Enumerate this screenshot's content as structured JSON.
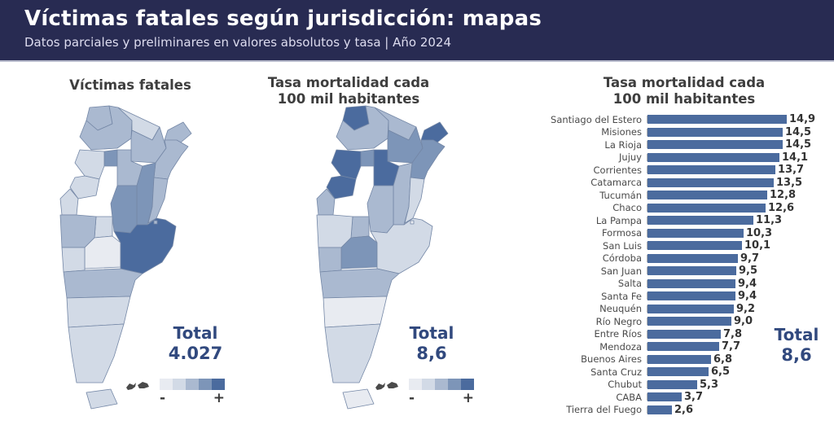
{
  "header": {
    "title": "Víctimas fatales según jurisdicción: mapas",
    "subtitle": "Datos parciales y preliminares en valores absolutos y tasa | Año 2024"
  },
  "colors": {
    "header_bg": "#282b52",
    "bar": "#4b6b9e",
    "total_text": "#31497e",
    "scale": [
      "#e8ebf1",
      "#d2dae6",
      "#aab9d0",
      "#7d95b8",
      "#4b6b9e"
    ]
  },
  "map_absolute": {
    "title": "Víctimas fatales",
    "total_label": "Total",
    "total_value": "4.027",
    "legend_minus": "-",
    "legend_plus": "+"
  },
  "map_rate": {
    "title_line1": "Tasa mortalidad cada",
    "title_line2": "100 mil habitantes",
    "total_label": "Total",
    "total_value": "8,6",
    "legend_minus": "-",
    "legend_plus": "+"
  },
  "bar_panel": {
    "title_line1": "Tasa mortalidad cada",
    "title_line2": "100 mil habitantes",
    "total_label": "Total",
    "total_value": "8,6"
  },
  "chart_data": {
    "type": "bar",
    "orientation": "horizontal",
    "title": "Tasa mortalidad cada 100 mil habitantes",
    "categories": [
      "Santiago del Estero",
      "Misiones",
      "La Rioja",
      "Jujuy",
      "Corrientes",
      "Catamarca",
      "Tucumán",
      "Chaco",
      "La Pampa",
      "Formosa",
      "San Luis",
      "Córdoba",
      "San Juan",
      "Salta",
      "Santa Fe",
      "Neuquén",
      "Río Negro",
      "Entre Ríos",
      "Mendoza",
      "Buenos Aires",
      "Santa Cruz",
      "Chubut",
      "CABA",
      "Tierra del Fuego"
    ],
    "values": [
      14.9,
      14.5,
      14.5,
      14.1,
      13.7,
      13.5,
      12.8,
      12.6,
      11.3,
      10.3,
      10.1,
      9.7,
      9.5,
      9.4,
      9.4,
      9.2,
      9.0,
      7.8,
      7.7,
      6.8,
      6.5,
      5.3,
      3.7,
      2.6
    ],
    "value_labels": [
      "14,9",
      "14,5",
      "14,5",
      "14,1",
      "13,7",
      "13,5",
      "12,8",
      "12,6",
      "11,3",
      "10,3",
      "10,1",
      "9,7",
      "9,5",
      "9,4",
      "9,4",
      "9,2",
      "9,0",
      "7,8",
      "7,7",
      "6,8",
      "6,5",
      "5,3",
      "3,7",
      "2,6"
    ],
    "xlim": [
      0,
      15.5
    ],
    "grid": false,
    "legend_position": "none",
    "total": "8,6"
  },
  "maps": {
    "provinces": [
      {
        "id": "jujuy",
        "name": "Jujuy",
        "level_absolute": 3,
        "level_rate": 5
      },
      {
        "id": "salta",
        "name": "Salta",
        "level_absolute": 3,
        "level_rate": 3
      },
      {
        "id": "formosa",
        "name": "Formosa",
        "level_absolute": 2,
        "level_rate": 3
      },
      {
        "id": "chaco",
        "name": "Chaco",
        "level_absolute": 3,
        "level_rate": 4
      },
      {
        "id": "misiones",
        "name": "Misiones",
        "level_absolute": 3,
        "level_rate": 5
      },
      {
        "id": "corrientes",
        "name": "Corrientes",
        "level_absolute": 3,
        "level_rate": 4
      },
      {
        "id": "tucuman",
        "name": "Tucumán",
        "level_absolute": 4,
        "level_rate": 4
      },
      {
        "id": "santiago",
        "name": "Santiago del Estero",
        "level_absolute": 3,
        "level_rate": 5
      },
      {
        "id": "catamarca",
        "name": "Catamarca",
        "level_absolute": 2,
        "level_rate": 5
      },
      {
        "id": "larioja",
        "name": "La Rioja",
        "level_absolute": 2,
        "level_rate": 5
      },
      {
        "id": "santafe",
        "name": "Santa Fe",
        "level_absolute": 4,
        "level_rate": 3
      },
      {
        "id": "entrerios",
        "name": "Entre Ríos",
        "level_absolute": 3,
        "level_rate": 2
      },
      {
        "id": "cordoba",
        "name": "Córdoba",
        "level_absolute": 4,
        "level_rate": 3
      },
      {
        "id": "sanjuan",
        "name": "San Juan",
        "level_absolute": 2,
        "level_rate": 3
      },
      {
        "id": "sanluis",
        "name": "San Luis",
        "level_absolute": 2,
        "level_rate": 3
      },
      {
        "id": "mendoza",
        "name": "Mendoza",
        "level_absolute": 3,
        "level_rate": 2
      },
      {
        "id": "lapampa",
        "name": "La Pampa",
        "level_absolute": 1,
        "level_rate": 4
      },
      {
        "id": "buenosaires",
        "name": "Buenos Aires",
        "level_absolute": 5,
        "level_rate": 2
      },
      {
        "id": "caba",
        "name": "CABA",
        "level_absolute": 3,
        "level_rate": 1
      },
      {
        "id": "neuquen",
        "name": "Neuquén",
        "level_absolute": 2,
        "level_rate": 3
      },
      {
        "id": "rionegro",
        "name": "Río Negro",
        "level_absolute": 3,
        "level_rate": 3
      },
      {
        "id": "chubut",
        "name": "Chubut",
        "level_absolute": 2,
        "level_rate": 1
      },
      {
        "id": "santacruz",
        "name": "Santa Cruz",
        "level_absolute": 2,
        "level_rate": 2
      },
      {
        "id": "tdf",
        "name": "Tierra del Fuego",
        "level_absolute": 2,
        "level_rate": 1
      }
    ]
  }
}
